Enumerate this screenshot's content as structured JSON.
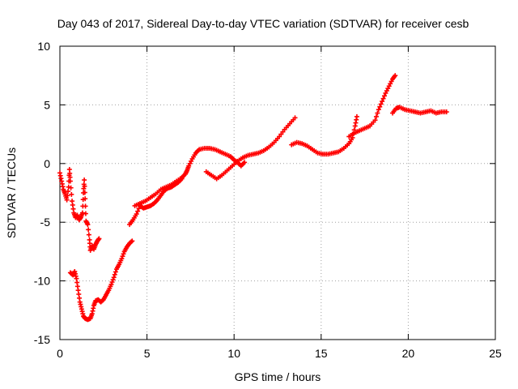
{
  "chart_data": {
    "type": "scatter",
    "title": "Day 043 of 2017, Sidereal Day-to-day VTEC variation (SDTVAR) for receiver cesb",
    "xlabel": "GPS time / hours",
    "ylabel": "SDTVAR / TECUs",
    "xlim": [
      0,
      25
    ],
    "ylim": [
      -15,
      10
    ],
    "xticks": [
      0,
      5,
      10,
      15,
      20,
      25
    ],
    "yticks": [
      -15,
      -10,
      -5,
      0,
      5,
      10
    ],
    "grid": true,
    "marker": "plus",
    "series": [
      {
        "color": "#ff0000",
        "segments": [
          [
            [
              0.0,
              -0.8
            ],
            [
              0.1,
              -1.5
            ],
            [
              0.2,
              -2.2
            ],
            [
              0.3,
              -2.6
            ],
            [
              0.4,
              -3.1
            ],
            [
              0.5,
              -2.0
            ],
            [
              0.55,
              -0.5
            ],
            [
              0.6,
              -1.5
            ],
            [
              0.7,
              -3.2
            ],
            [
              0.8,
              -4.2
            ],
            [
              0.9,
              -4.6
            ],
            [
              1.0,
              -4.4
            ],
            [
              1.1,
              -4.8
            ],
            [
              1.2,
              -4.6
            ],
            [
              1.3,
              -4.2
            ],
            [
              1.35,
              -2.5
            ],
            [
              1.4,
              -1.4
            ],
            [
              1.45,
              -3.0
            ],
            [
              1.5,
              -4.9
            ],
            [
              1.6,
              -5.2
            ],
            [
              1.7,
              -6.5
            ],
            [
              1.75,
              -7.4
            ],
            [
              1.85,
              -7.0
            ],
            [
              1.95,
              -7.3
            ],
            [
              2.05,
              -6.9
            ],
            [
              2.15,
              -6.6
            ],
            [
              2.25,
              -6.4
            ]
          ],
          [
            [
              0.6,
              -9.3
            ],
            [
              0.75,
              -9.5
            ],
            [
              0.85,
              -9.2
            ],
            [
              0.95,
              -9.8
            ],
            [
              1.05,
              -10.8
            ],
            [
              1.15,
              -11.8
            ],
            [
              1.25,
              -12.4
            ],
            [
              1.35,
              -13.0
            ],
            [
              1.45,
              -13.2
            ],
            [
              1.6,
              -13.3
            ],
            [
              1.75,
              -13.2
            ],
            [
              1.85,
              -12.8
            ],
            [
              1.95,
              -12.1
            ],
            [
              2.05,
              -11.7
            ],
            [
              2.2,
              -11.6
            ],
            [
              2.35,
              -11.8
            ],
            [
              2.5,
              -11.6
            ],
            [
              2.65,
              -11.2
            ],
            [
              2.8,
              -10.8
            ],
            [
              2.95,
              -10.3
            ],
            [
              3.1,
              -9.7
            ],
            [
              3.25,
              -9.0
            ],
            [
              3.4,
              -8.6
            ],
            [
              3.55,
              -8.1
            ],
            [
              3.7,
              -7.5
            ],
            [
              3.85,
              -7.1
            ],
            [
              4.0,
              -6.8
            ],
            [
              4.15,
              -6.6
            ]
          ],
          [
            [
              4.0,
              -5.2
            ],
            [
              4.2,
              -4.8
            ],
            [
              4.4,
              -4.3
            ],
            [
              4.6,
              -3.6
            ],
            [
              4.8,
              -3.8
            ],
            [
              5.0,
              -3.7
            ],
            [
              5.2,
              -3.6
            ],
            [
              5.4,
              -3.4
            ],
            [
              5.6,
              -3.1
            ],
            [
              5.8,
              -2.7
            ],
            [
              6.0,
              -2.3
            ],
            [
              6.2,
              -2.1
            ],
            [
              6.4,
              -2.0
            ],
            [
              6.6,
              -1.8
            ],
            [
              6.8,
              -1.6
            ],
            [
              7.0,
              -1.3
            ]
          ],
          [
            [
              4.3,
              -3.6
            ],
            [
              4.6,
              -3.4
            ],
            [
              4.9,
              -3.2
            ],
            [
              5.2,
              -2.9
            ],
            [
              5.5,
              -2.6
            ],
            [
              5.8,
              -2.2
            ],
            [
              6.1,
              -2.0
            ],
            [
              6.4,
              -1.8
            ],
            [
              6.7,
              -1.5
            ],
            [
              7.0,
              -1.2
            ],
            [
              7.2,
              -0.9
            ],
            [
              7.3,
              -0.6
            ],
            [
              7.4,
              -0.2
            ],
            [
              7.6,
              0.4
            ],
            [
              7.8,
              0.9
            ],
            [
              8.0,
              1.2
            ],
            [
              8.3,
              1.3
            ],
            [
              8.6,
              1.3
            ],
            [
              8.9,
              1.2
            ],
            [
              9.2,
              1.0
            ],
            [
              9.5,
              0.8
            ],
            [
              9.8,
              0.6
            ],
            [
              10.0,
              0.3
            ],
            [
              10.2,
              0.1
            ],
            [
              10.4,
              -0.2
            ],
            [
              10.6,
              0.1
            ]
          ],
          [
            [
              8.4,
              -0.7
            ],
            [
              8.7,
              -1.0
            ],
            [
              9.0,
              -1.3
            ],
            [
              9.3,
              -1.0
            ],
            [
              9.6,
              -0.6
            ],
            [
              9.9,
              -0.2
            ],
            [
              10.2,
              0.2
            ],
            [
              10.5,
              0.5
            ],
            [
              10.8,
              0.7
            ],
            [
              11.1,
              0.8
            ],
            [
              11.4,
              0.9
            ],
            [
              11.7,
              1.1
            ],
            [
              12.0,
              1.4
            ],
            [
              12.3,
              1.8
            ],
            [
              12.6,
              2.3
            ],
            [
              12.9,
              2.9
            ],
            [
              13.2,
              3.4
            ],
            [
              13.5,
              3.9
            ]
          ],
          [
            [
              13.3,
              1.6
            ],
            [
              13.6,
              1.8
            ],
            [
              13.9,
              1.7
            ],
            [
              14.2,
              1.5
            ],
            [
              14.5,
              1.2
            ],
            [
              14.8,
              0.9
            ],
            [
              15.1,
              0.8
            ],
            [
              15.4,
              0.8
            ],
            [
              15.7,
              0.9
            ],
            [
              16.0,
              1.0
            ],
            [
              16.3,
              1.3
            ],
            [
              16.6,
              1.7
            ],
            [
              16.8,
              2.2
            ],
            [
              16.95,
              3.2
            ],
            [
              17.05,
              4.0
            ]
          ],
          [
            [
              16.6,
              2.3
            ],
            [
              16.9,
              2.6
            ],
            [
              17.2,
              2.8
            ],
            [
              17.5,
              3.0
            ],
            [
              17.8,
              3.2
            ],
            [
              18.1,
              3.7
            ],
            [
              18.3,
              4.6
            ],
            [
              18.5,
              5.3
            ],
            [
              18.7,
              6.0
            ],
            [
              18.9,
              6.6
            ],
            [
              19.1,
              7.2
            ],
            [
              19.25,
              7.5
            ]
          ],
          [
            [
              19.1,
              4.3
            ],
            [
              19.3,
              4.7
            ],
            [
              19.5,
              4.8
            ],
            [
              19.8,
              4.6
            ],
            [
              20.1,
              4.5
            ],
            [
              20.4,
              4.4
            ],
            [
              20.7,
              4.3
            ],
            [
              21.0,
              4.4
            ],
            [
              21.3,
              4.5
            ],
            [
              21.6,
              4.3
            ],
            [
              21.9,
              4.4
            ],
            [
              22.2,
              4.4
            ]
          ]
        ]
      }
    ]
  }
}
